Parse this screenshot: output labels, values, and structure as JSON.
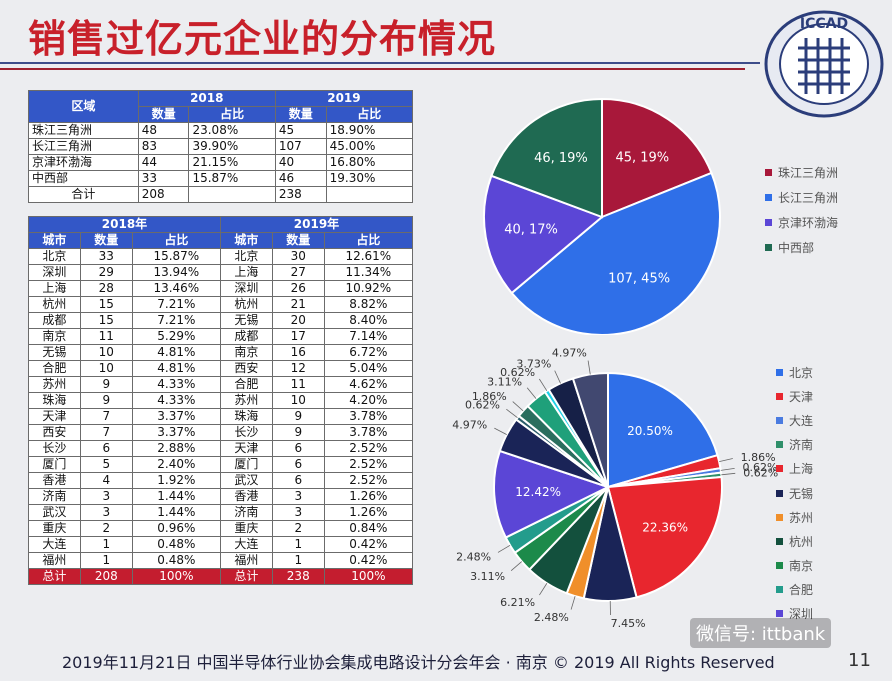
{
  "title": "销售过亿元企业的分布情况",
  "logo": {
    "text": "ICCAD"
  },
  "region_table": {
    "header_region": "区域",
    "year_2018": "2018",
    "year_2019": "2019",
    "sub_count": "数量",
    "sub_share": "占比",
    "rows": [
      {
        "region": "珠江三角洲",
        "c18": "48",
        "p18": "23.08%",
        "c19": "45",
        "p19": "18.90%"
      },
      {
        "region": "长江三角洲",
        "c18": "83",
        "p18": "39.90%",
        "c19": "107",
        "p19": "45.00%"
      },
      {
        "region": "京津环渤海",
        "c18": "44",
        "p18": "21.15%",
        "c19": "40",
        "p19": "16.80%"
      },
      {
        "region": "中西部",
        "c18": "33",
        "p18": "15.87%",
        "c19": "46",
        "p19": "19.30%"
      }
    ],
    "total_label": "合计",
    "total_18": "208",
    "total_19": "238"
  },
  "city_table": {
    "year_2018": "2018年",
    "year_2019": "2019年",
    "col_city": "城市",
    "col_count": "数量",
    "col_share": "占比",
    "rows": [
      {
        "city18": "北京",
        "c18": "33",
        "p18": "15.87%",
        "city19": "北京",
        "c19": "30",
        "p19": "12.61%"
      },
      {
        "city18": "深圳",
        "c18": "29",
        "p18": "13.94%",
        "city19": "上海",
        "c19": "27",
        "p19": "11.34%"
      },
      {
        "city18": "上海",
        "c18": "28",
        "p18": "13.46%",
        "city19": "深圳",
        "c19": "26",
        "p19": "10.92%"
      },
      {
        "city18": "杭州",
        "c18": "15",
        "p18": "7.21%",
        "city19": "杭州",
        "c19": "21",
        "p19": "8.82%"
      },
      {
        "city18": "成都",
        "c18": "15",
        "p18": "7.21%",
        "city19": "无锡",
        "c19": "20",
        "p19": "8.40%"
      },
      {
        "city18": "南京",
        "c18": "11",
        "p18": "5.29%",
        "city19": "成都",
        "c19": "17",
        "p19": "7.14%"
      },
      {
        "city18": "无锡",
        "c18": "10",
        "p18": "4.81%",
        "city19": "南京",
        "c19": "16",
        "p19": "6.72%"
      },
      {
        "city18": "合肥",
        "c18": "10",
        "p18": "4.81%",
        "city19": "西安",
        "c19": "12",
        "p19": "5.04%"
      },
      {
        "city18": "苏州",
        "c18": "9",
        "p18": "4.33%",
        "city19": "合肥",
        "c19": "11",
        "p19": "4.62%"
      },
      {
        "city18": "珠海",
        "c18": "9",
        "p18": "4.33%",
        "city19": "苏州",
        "c19": "10",
        "p19": "4.20%"
      },
      {
        "city18": "天津",
        "c18": "7",
        "p18": "3.37%",
        "city19": "珠海",
        "c19": "9",
        "p19": "3.78%"
      },
      {
        "city18": "西安",
        "c18": "7",
        "p18": "3.37%",
        "city19": "长沙",
        "c19": "9",
        "p19": "3.78%"
      },
      {
        "city18": "长沙",
        "c18": "6",
        "p18": "2.88%",
        "city19": "天津",
        "c19": "6",
        "p19": "2.52%"
      },
      {
        "city18": "厦门",
        "c18": "5",
        "p18": "2.40%",
        "city19": "厦门",
        "c19": "6",
        "p19": "2.52%"
      },
      {
        "city18": "香港",
        "c18": "4",
        "p18": "1.92%",
        "city19": "武汉",
        "c19": "6",
        "p19": "2.52%"
      },
      {
        "city18": "济南",
        "c18": "3",
        "p18": "1.44%",
        "city19": "香港",
        "c19": "3",
        "p19": "1.26%"
      },
      {
        "city18": "武汉",
        "c18": "3",
        "p18": "1.44%",
        "city19": "济南",
        "c19": "3",
        "p19": "1.26%"
      },
      {
        "city18": "重庆",
        "c18": "2",
        "p18": "0.96%",
        "city19": "重庆",
        "c19": "2",
        "p19": "0.84%"
      },
      {
        "city18": "大连",
        "c18": "1",
        "p18": "0.48%",
        "city19": "大连",
        "c19": "1",
        "p19": "0.42%"
      },
      {
        "city18": "福州",
        "c18": "1",
        "p18": "0.48%",
        "city19": "福州",
        "c19": "1",
        "p19": "0.42%"
      }
    ],
    "total_label": "总计",
    "total_18": "208",
    "total_18_share": "100%",
    "total_19": "238",
    "total_19_share": "100%"
  },
  "chart_data": [
    {
      "type": "pie",
      "series": [
        {
          "name": "珠江三角洲",
          "value": 45,
          "label": "45, 19%",
          "color": "#a8183a"
        },
        {
          "name": "长江三角洲",
          "value": 107,
          "label": "107, 45%",
          "color": "#2f6fe8"
        },
        {
          "name": "京津环渤海",
          "value": 40,
          "label": "40, 17%",
          "color": "#5b46d6"
        },
        {
          "name": "中西部",
          "value": 46,
          "label": "46, 19%",
          "color": "#1f6a52"
        }
      ]
    },
    {
      "type": "pie",
      "series": [
        {
          "name": "北京",
          "value": 20.5,
          "label": "20.50%",
          "color": "#2f6fe8"
        },
        {
          "name": "天津",
          "value": 1.86,
          "label": "1.86%",
          "color": "#e8262e"
        },
        {
          "name": "大连",
          "value": 0.62,
          "label": "0.62%",
          "color": "#4a7be0"
        },
        {
          "name": "济南",
          "value": 0.62,
          "label": "0.62%",
          "color": "#2f8f6a"
        },
        {
          "name": "上海",
          "value": 22.36,
          "label": "22.36%",
          "color": "#e8262e"
        },
        {
          "name": "无锡",
          "value": 7.45,
          "label": "7.45%",
          "color": "#1a2457"
        },
        {
          "name": "苏州",
          "value": 2.48,
          "label": "2.48%",
          "color": "#f08f2a"
        },
        {
          "name": "杭州",
          "value": 6.21,
          "label": "6.21%",
          "color": "#13503d"
        },
        {
          "name": "南京",
          "value": 3.11,
          "label": "3.11%",
          "color": "#1c8a4a"
        },
        {
          "name": "合肥",
          "value": 2.48,
          "label": "2.48%",
          "color": "#239c8c"
        },
        {
          "name": "深圳",
          "value": 12.42,
          "label": "12.42%",
          "color": "#5b46d6"
        },
        {
          "name": "",
          "value": 4.97,
          "label": "4.97%",
          "color": "#1a2457"
        },
        {
          "name": "",
          "value": 0.62,
          "label": "0.62%",
          "color": "#2b5d6a"
        },
        {
          "name": "",
          "value": 1.86,
          "label": "1.86%",
          "color": "#2a6e5e"
        },
        {
          "name": "",
          "value": 3.11,
          "label": "3.11%",
          "color": "#1fa07a"
        },
        {
          "name": "",
          "value": 0.62,
          "label": "0.62%",
          "color": "#1fd1e8"
        },
        {
          "name": "",
          "value": 3.73,
          "label": "3.73%",
          "color": "#162047"
        },
        {
          "name": "",
          "value": 4.97,
          "label": "4.97%",
          "color": "#414870"
        }
      ],
      "legend": [
        "北京",
        "天津",
        "大连",
        "济南",
        "上海",
        "无锡",
        "苏州",
        "杭州",
        "南京",
        "合肥",
        "深圳"
      ]
    }
  ],
  "footer": "2019年11月21日 中国半导体行业协会集成电路设计分会年会 · 南京 © 2019 All Rights Reserved",
  "page_number": "11",
  "watermark": "微信号: ittbank"
}
